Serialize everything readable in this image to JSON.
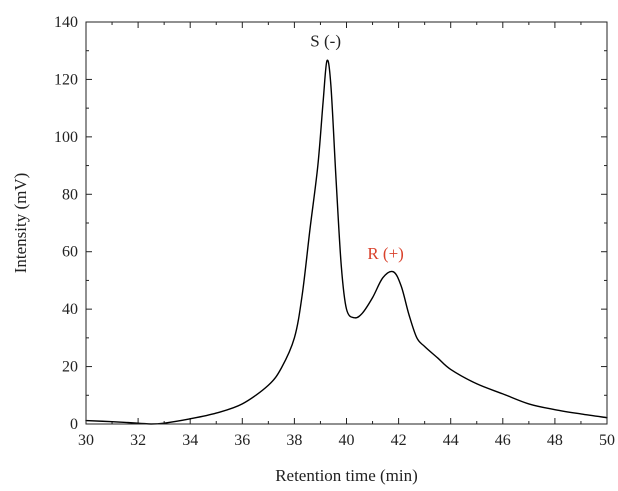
{
  "chart_data": {
    "type": "line",
    "title": "",
    "xlabel": "Retention time (min)",
    "ylabel": "Intensity (mV)",
    "xlim": [
      30,
      50
    ],
    "ylim": [
      0,
      140
    ],
    "x_ticks": [
      "30",
      "32",
      "34",
      "36",
      "38",
      "40",
      "42",
      "44",
      "46",
      "48",
      "50"
    ],
    "y_ticks": [
      "0",
      "20",
      "40",
      "60",
      "80",
      "100",
      "120",
      "140"
    ],
    "grid": false,
    "legend": "none",
    "line_color": "#000000",
    "series": [
      {
        "x": [
          30,
          31,
          32,
          32.5,
          33,
          34,
          35,
          36,
          37,
          37.5,
          38,
          38.3,
          38.6,
          38.9,
          39.1,
          39.25,
          39.4,
          39.6,
          39.8,
          40.0,
          40.3,
          40.6,
          41.0,
          41.4,
          41.8,
          42.1,
          42.4,
          42.7,
          43.0,
          43.5,
          44.0,
          45.0,
          46.0,
          47.0,
          48.0,
          49.0,
          50.0
        ],
        "y": [
          1.2,
          0.8,
          0.3,
          0.0,
          0.3,
          1.8,
          3.8,
          7.0,
          13.5,
          19.5,
          30.0,
          45.0,
          68.0,
          90.0,
          112.0,
          126.5,
          118.0,
          85.0,
          55.0,
          40.0,
          37.0,
          38.5,
          44.0,
          51.0,
          53.0,
          48.0,
          38.0,
          30.0,
          27.0,
          23.0,
          19.0,
          14.0,
          10.5,
          7.0,
          5.0,
          3.5,
          2.2
        ]
      }
    ],
    "annotations": [
      {
        "text": "S (-)",
        "x": 39.2,
        "y": 131.5,
        "color": "#222222"
      },
      {
        "text": "R (+)",
        "x": 41.5,
        "y": 57.5,
        "color": "#d9412b"
      }
    ]
  }
}
